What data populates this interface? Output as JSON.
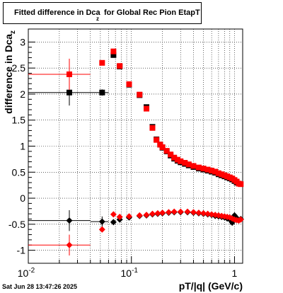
{
  "title": {
    "main": "Fitted difference in Dca",
    "sub": "z",
    "rest": "  for Global Rec Pion EtapT"
  },
  "timestamp": "Sat Jun 28 13:47:26 2025",
  "colors": {
    "series_black": "#000000",
    "series_red": "#ff0000",
    "grid": "#000000"
  },
  "chart_data": {
    "type": "scatter",
    "title": "Fitted difference in Dca_z for Global Rec Pion EtapT",
    "xlabel": "pT/|q| (GeV/c)",
    "ylabel": "difference in Dca_z",
    "xscale": "log",
    "xlim": [
      0.01,
      1.2
    ],
    "ylim": [
      -1.25,
      3.25
    ],
    "grid": true,
    "x_ticks": [
      {
        "value": 0.01,
        "label": "10^-2"
      },
      {
        "value": 0.1,
        "label": "10^-1"
      },
      {
        "value": 1,
        "label": "1"
      }
    ],
    "y_ticks": [
      "-1",
      "-0.5",
      "0",
      "0.5",
      "1",
      "1.5",
      "2",
      "2.5",
      "3"
    ],
    "series": [
      {
        "marker": "square",
        "color": "#000000",
        "points": [
          {
            "x": 0.025,
            "y": 2.03,
            "xerr": [
              0.01,
              0.04
            ],
            "yerr": 0.25
          },
          {
            "x": 0.052,
            "y": 2.03,
            "xerr": [
              0.04,
              0.06
            ],
            "yerr": 0.06
          },
          {
            "x": 0.067,
            "y": 2.75
          },
          {
            "x": 0.077,
            "y": 2.53
          },
          {
            "x": 0.095,
            "y": 2.18
          },
          {
            "x": 0.12,
            "y": 1.98
          },
          {
            "x": 0.14,
            "y": 1.75
          },
          {
            "x": 0.16,
            "y": 1.37
          },
          {
            "x": 0.175,
            "y": 1.13
          },
          {
            "x": 0.19,
            "y": 1.03
          },
          {
            "x": 0.2,
            "y": 0.97
          },
          {
            "x": 0.22,
            "y": 0.9
          },
          {
            "x": 0.24,
            "y": 0.82
          },
          {
            "x": 0.26,
            "y": 0.76
          },
          {
            "x": 0.28,
            "y": 0.72
          },
          {
            "x": 0.3,
            "y": 0.69
          },
          {
            "x": 0.33,
            "y": 0.66
          },
          {
            "x": 0.36,
            "y": 0.63
          },
          {
            "x": 0.4,
            "y": 0.6
          },
          {
            "x": 0.45,
            "y": 0.57
          },
          {
            "x": 0.5,
            "y": 0.55
          },
          {
            "x": 0.55,
            "y": 0.53
          },
          {
            "x": 0.6,
            "y": 0.51
          },
          {
            "x": 0.65,
            "y": 0.49
          },
          {
            "x": 0.7,
            "y": 0.46
          },
          {
            "x": 0.75,
            "y": 0.44
          },
          {
            "x": 0.8,
            "y": 0.42
          },
          {
            "x": 0.85,
            "y": 0.4
          },
          {
            "x": 0.9,
            "y": 0.38
          },
          {
            "x": 0.95,
            "y": 0.36
          },
          {
            "x": 1.0,
            "y": 0.33
          },
          {
            "x": 1.05,
            "y": 0.3
          },
          {
            "x": 1.1,
            "y": 0.28
          }
        ]
      },
      {
        "marker": "square",
        "color": "#ff0000",
        "points": [
          {
            "x": 0.025,
            "y": 2.38,
            "xerr": [
              0.01,
              0.04
            ],
            "yerr": 0.3
          },
          {
            "x": 0.052,
            "y": 2.6
          },
          {
            "x": 0.067,
            "y": 2.82
          },
          {
            "x": 0.077,
            "y": 2.54
          },
          {
            "x": 0.095,
            "y": 2.19
          },
          {
            "x": 0.12,
            "y": 1.99
          },
          {
            "x": 0.14,
            "y": 1.72
          },
          {
            "x": 0.16,
            "y": 1.35
          },
          {
            "x": 0.175,
            "y": 1.12
          },
          {
            "x": 0.19,
            "y": 1.03
          },
          {
            "x": 0.2,
            "y": 0.98
          },
          {
            "x": 0.22,
            "y": 0.91
          },
          {
            "x": 0.24,
            "y": 0.84
          },
          {
            "x": 0.26,
            "y": 0.78
          },
          {
            "x": 0.28,
            "y": 0.74
          },
          {
            "x": 0.3,
            "y": 0.71
          },
          {
            "x": 0.33,
            "y": 0.68
          },
          {
            "x": 0.36,
            "y": 0.65
          },
          {
            "x": 0.4,
            "y": 0.62
          },
          {
            "x": 0.45,
            "y": 0.59
          },
          {
            "x": 0.5,
            "y": 0.57
          },
          {
            "x": 0.55,
            "y": 0.55
          },
          {
            "x": 0.6,
            "y": 0.53
          },
          {
            "x": 0.65,
            "y": 0.51
          },
          {
            "x": 0.7,
            "y": 0.48
          },
          {
            "x": 0.75,
            "y": 0.46
          },
          {
            "x": 0.8,
            "y": 0.44
          },
          {
            "x": 0.85,
            "y": 0.42
          },
          {
            "x": 0.9,
            "y": 0.4
          },
          {
            "x": 0.95,
            "y": 0.38
          },
          {
            "x": 1.0,
            "y": 0.35
          },
          {
            "x": 1.05,
            "y": 0.32
          },
          {
            "x": 1.1,
            "y": 0.28
          },
          {
            "x": 1.15,
            "y": 0.27
          }
        ]
      },
      {
        "marker": "diamond",
        "color": "#000000",
        "points": [
          {
            "x": 0.025,
            "y": -0.43,
            "xerr": [
              0.01,
              0.04
            ],
            "yerr": 0.2
          },
          {
            "x": 0.052,
            "y": -0.45,
            "xerr": [
              0.04,
              0.06
            ],
            "yerr": 0.1
          },
          {
            "x": 0.067,
            "y": -0.46
          },
          {
            "x": 0.077,
            "y": -0.41
          },
          {
            "x": 0.095,
            "y": -0.37
          },
          {
            "x": 0.12,
            "y": -0.34
          },
          {
            "x": 0.14,
            "y": -0.33
          },
          {
            "x": 0.16,
            "y": -0.31
          },
          {
            "x": 0.18,
            "y": -0.3
          },
          {
            "x": 0.2,
            "y": -0.29
          },
          {
            "x": 0.23,
            "y": -0.28
          },
          {
            "x": 0.26,
            "y": -0.27
          },
          {
            "x": 0.3,
            "y": -0.27
          },
          {
            "x": 0.35,
            "y": -0.27
          },
          {
            "x": 0.4,
            "y": -0.28
          },
          {
            "x": 0.45,
            "y": -0.29
          },
          {
            "x": 0.5,
            "y": -0.3
          },
          {
            "x": 0.55,
            "y": -0.31
          },
          {
            "x": 0.6,
            "y": -0.32
          },
          {
            "x": 0.65,
            "y": -0.34
          },
          {
            "x": 0.7,
            "y": -0.35
          },
          {
            "x": 0.75,
            "y": -0.36
          },
          {
            "x": 0.8,
            "y": -0.37
          },
          {
            "x": 0.85,
            "y": -0.39
          },
          {
            "x": 0.9,
            "y": -0.41
          },
          {
            "x": 0.95,
            "y": -0.47
          },
          {
            "x": 1.0,
            "y": -0.33
          },
          {
            "x": 1.05,
            "y": -0.38
          },
          {
            "x": 1.1,
            "y": -0.42
          },
          {
            "x": 1.15,
            "y": -0.4
          }
        ]
      },
      {
        "marker": "diamond",
        "color": "#ff0000",
        "points": [
          {
            "x": 0.025,
            "y": -0.9,
            "xerr": [
              0.01,
              0.04
            ],
            "yerr": 0.2
          },
          {
            "x": 0.052,
            "y": -0.6
          },
          {
            "x": 0.067,
            "y": -0.31
          },
          {
            "x": 0.077,
            "y": -0.36
          },
          {
            "x": 0.095,
            "y": -0.35
          },
          {
            "x": 0.12,
            "y": -0.33
          },
          {
            "x": 0.14,
            "y": -0.32
          },
          {
            "x": 0.16,
            "y": -0.3
          },
          {
            "x": 0.18,
            "y": -0.29
          },
          {
            "x": 0.2,
            "y": -0.28
          },
          {
            "x": 0.23,
            "y": -0.27
          },
          {
            "x": 0.26,
            "y": -0.26
          },
          {
            "x": 0.3,
            "y": -0.26
          },
          {
            "x": 0.35,
            "y": -0.26
          },
          {
            "x": 0.4,
            "y": -0.27
          },
          {
            "x": 0.45,
            "y": -0.28
          },
          {
            "x": 0.5,
            "y": -0.29
          },
          {
            "x": 0.55,
            "y": -0.3
          },
          {
            "x": 0.6,
            "y": -0.31
          },
          {
            "x": 0.65,
            "y": -0.32
          },
          {
            "x": 0.7,
            "y": -0.33
          },
          {
            "x": 0.75,
            "y": -0.34
          },
          {
            "x": 0.8,
            "y": -0.35
          },
          {
            "x": 0.85,
            "y": -0.36
          },
          {
            "x": 0.9,
            "y": -0.37
          },
          {
            "x": 0.95,
            "y": -0.39
          },
          {
            "x": 1.0,
            "y": -0.41
          },
          {
            "x": 1.05,
            "y": -0.42
          },
          {
            "x": 1.1,
            "y": -0.43
          },
          {
            "x": 1.15,
            "y": -0.41
          }
        ]
      }
    ]
  }
}
